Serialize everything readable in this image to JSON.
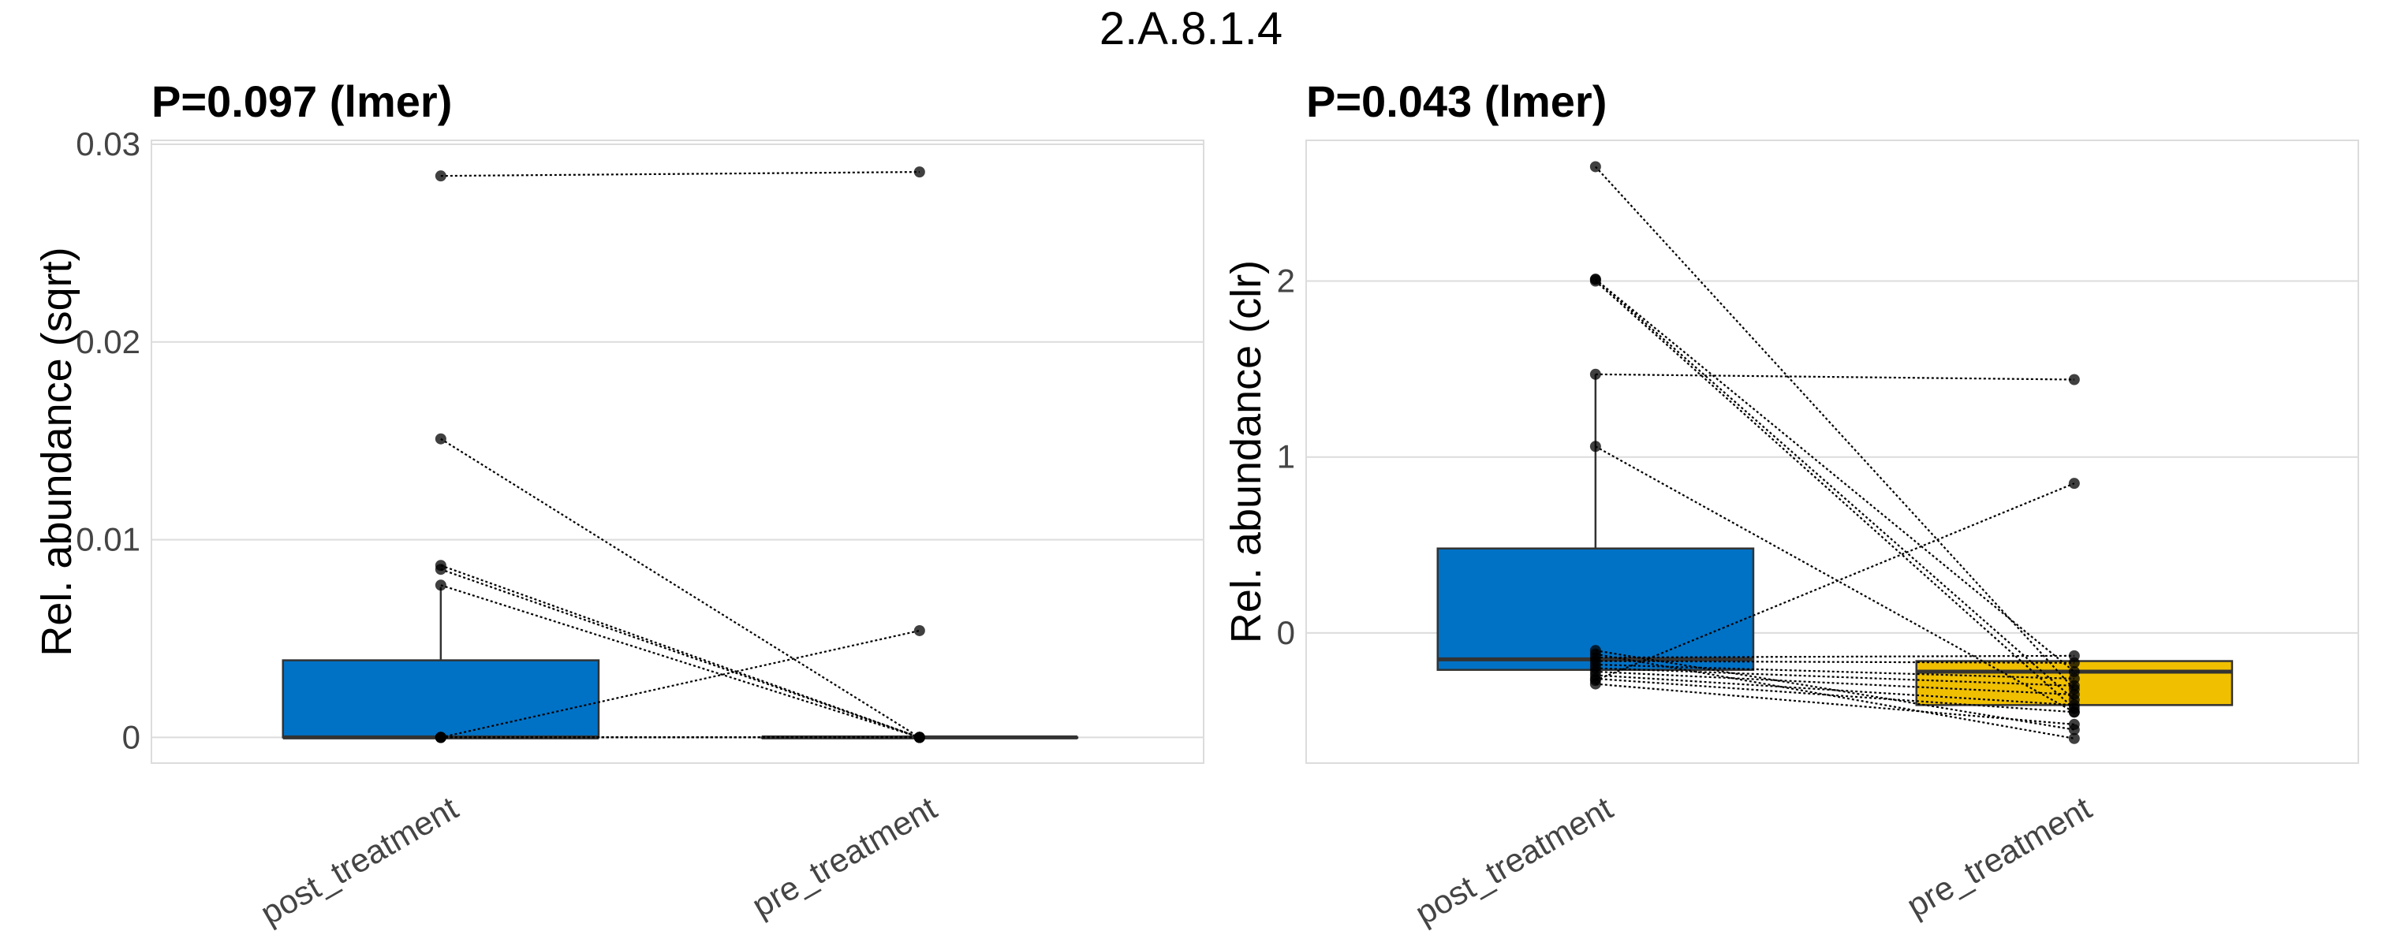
{
  "figure_title": "2.A.8.1.4",
  "colors": {
    "post_treatment": "#0072C6",
    "pre_treatment": "#F0C000",
    "line": "#000000",
    "grid": "#dcdcdc"
  },
  "chart_data": [
    {
      "type": "box",
      "title": "P=0.097 (lmer)",
      "ylabel": "Rel. abundance (sqrt)",
      "xlabel": "",
      "ylim": [
        -0.0013,
        0.0302
      ],
      "yticks": [
        0,
        0.01,
        0.02,
        0.03
      ],
      "ytick_labels": [
        "0",
        "0.01",
        "0.02",
        "0.03"
      ],
      "categories": [
        "post_treatment",
        "pre_treatment"
      ],
      "boxes": [
        {
          "group": "post_treatment",
          "q1": 0,
          "median": 0,
          "q3": 0.0039,
          "whisker_low": 0,
          "whisker_high": 0.0076,
          "fill": "#0072C6"
        },
        {
          "group": "pre_treatment",
          "q1": 0,
          "median": 0,
          "q3": 0,
          "whisker_low": 0,
          "whisker_high": 0,
          "fill": "#F0C000"
        }
      ],
      "pairs": [
        [
          0.0284,
          0.0286
        ],
        [
          0.0151,
          0
        ],
        [
          0.0087,
          0
        ],
        [
          0.0085,
          0
        ],
        [
          0.0077,
          0
        ],
        [
          0,
          0.0054
        ],
        [
          0,
          0
        ],
        [
          0,
          0
        ],
        [
          0,
          0
        ],
        [
          0,
          0
        ],
        [
          0,
          0
        ],
        [
          0,
          0
        ],
        [
          0,
          0
        ],
        [
          0,
          0
        ]
      ]
    },
    {
      "type": "box",
      "title": "P=0.043 (lmer)",
      "ylabel": "Rel. abundance (clr)",
      "xlabel": "",
      "ylim": [
        -0.74,
        2.8
      ],
      "yticks": [
        0,
        1,
        2
      ],
      "ytick_labels": [
        "0",
        "1",
        "2"
      ],
      "categories": [
        "post_treatment",
        "pre_treatment"
      ],
      "boxes": [
        {
          "group": "post_treatment",
          "q1": -0.21,
          "median": -0.15,
          "q3": 0.48,
          "whisker_low": -0.21,
          "whisker_high": 1.47,
          "fill": "#0072C6"
        },
        {
          "group": "pre_treatment",
          "q1": -0.41,
          "median": -0.22,
          "q3": -0.16,
          "whisker_low": -0.41,
          "whisker_high": -0.16,
          "fill": "#F0C000"
        }
      ],
      "pairs": [
        [
          2.65,
          -0.32
        ],
        [
          2.01,
          -0.22
        ],
        [
          2.01,
          -0.38
        ],
        [
          2.0,
          -0.43
        ],
        [
          1.47,
          1.44
        ],
        [
          1.06,
          -0.45
        ],
        [
          -0.27,
          0.85
        ],
        [
          -0.1,
          -0.55
        ],
        [
          -0.12,
          -0.6
        ],
        [
          -0.14,
          -0.13
        ],
        [
          -0.16,
          -0.17
        ],
        [
          -0.18,
          -0.26
        ],
        [
          -0.2,
          -0.3
        ],
        [
          -0.22,
          -0.35
        ],
        [
          -0.24,
          -0.41
        ],
        [
          -0.26,
          -0.45
        ],
        [
          -0.29,
          -0.52
        ]
      ]
    }
  ]
}
